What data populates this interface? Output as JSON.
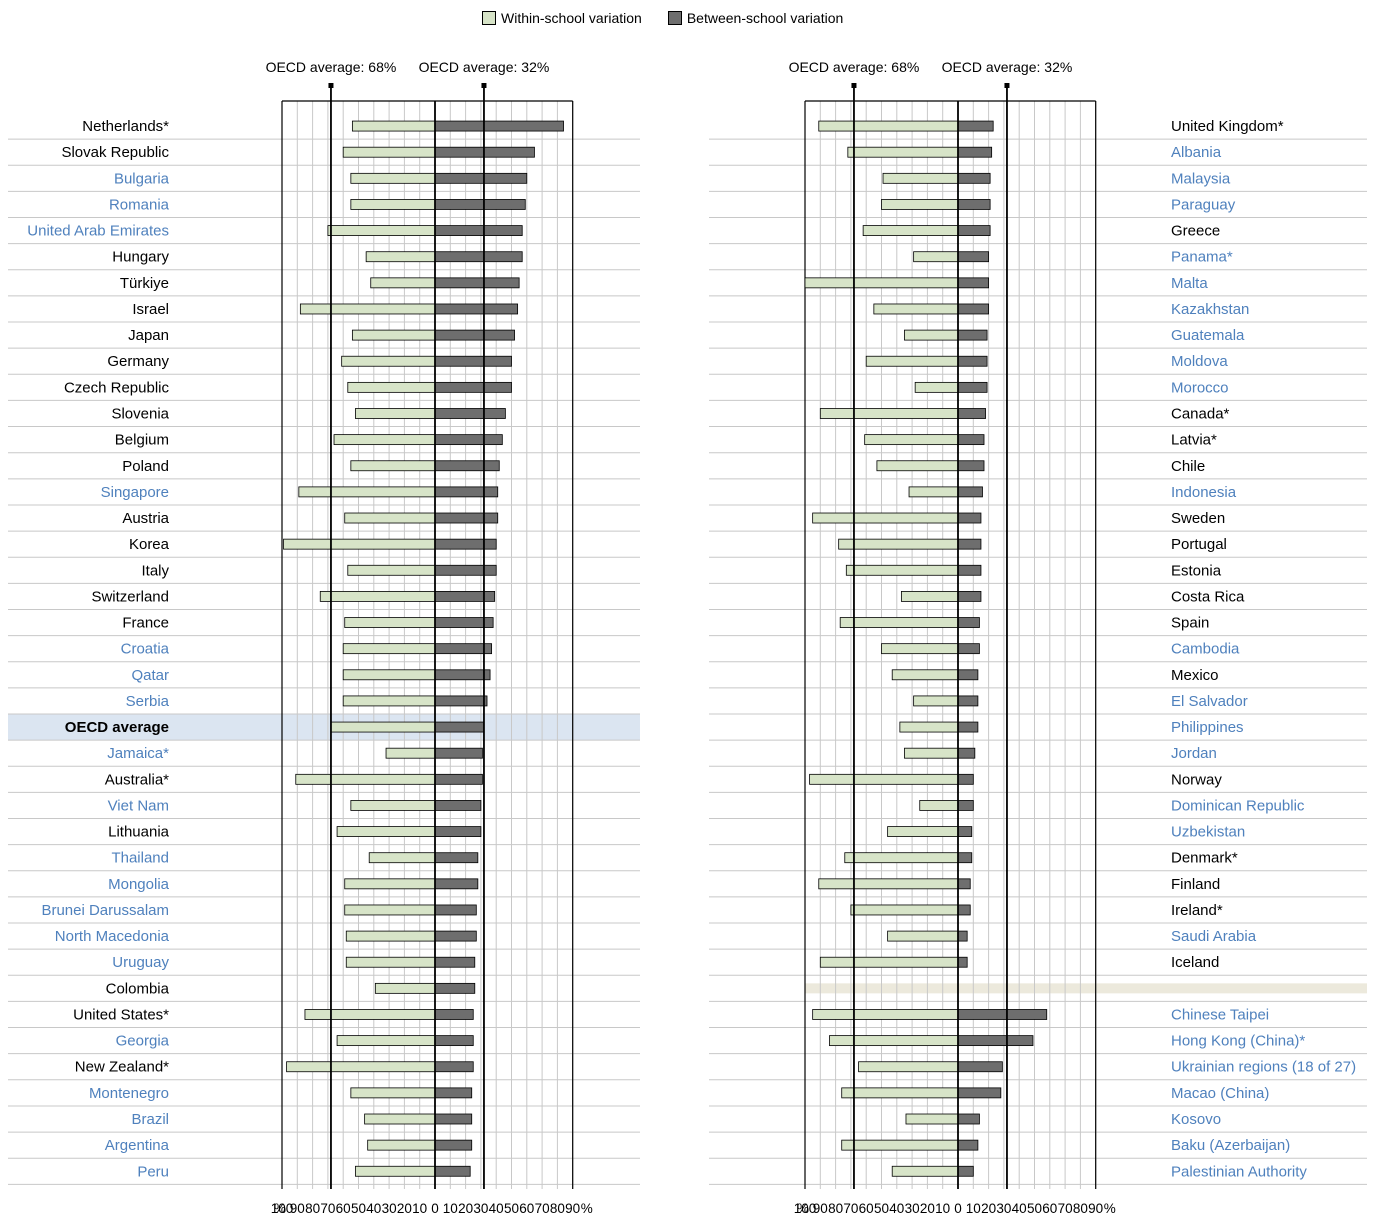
{
  "colors": {
    "within": "#d7e4c8",
    "between": "#6e6e6e",
    "partner_label": "#4f81bd",
    "oecd_label": "#000000",
    "oecd_highlight": "#dbe5f1",
    "separator": "#ece9dc"
  },
  "legend": {
    "within_label": "Within-school variation",
    "between_label": "Between-school variation"
  },
  "axis": {
    "tick_labels": [
      "100",
      "90",
      "80",
      "70",
      "60",
      "50",
      "40",
      "30",
      "20",
      "10",
      "0",
      "10",
      "20",
      "30",
      "40",
      "50",
      "60",
      "70",
      "80",
      "90"
    ],
    "percent_sign": "%"
  },
  "chart_data": {
    "type": "bar",
    "subtype": "diverging horizontal bar",
    "unit": "%",
    "oecd_average_within": 68,
    "oecd_average_between": 32,
    "annotations": [
      "OECD average: 68%",
      "OECD average: 32%"
    ],
    "xlim_within": [
      0,
      100
    ],
    "xlim_between": [
      0,
      90
    ],
    "grid": true,
    "legend_position": "top-center",
    "panels": [
      {
        "rows": [
          {
            "label": "Netherlands*",
            "within": 54,
            "between": 84,
            "oecd": true
          },
          {
            "label": "Slovak Republic",
            "within": 60,
            "between": 65,
            "oecd": true
          },
          {
            "label": "Bulgaria",
            "within": 55,
            "between": 60,
            "oecd": false
          },
          {
            "label": "Romania",
            "within": 55,
            "between": 59,
            "oecd": false
          },
          {
            "label": "United Arab Emirates",
            "within": 70,
            "between": 57,
            "oecd": false
          },
          {
            "label": "Hungary",
            "within": 45,
            "between": 57,
            "oecd": true
          },
          {
            "label": "Türkiye",
            "within": 42,
            "between": 55,
            "oecd": true
          },
          {
            "label": "Israel",
            "within": 88,
            "between": 54,
            "oecd": true
          },
          {
            "label": "Japan",
            "within": 54,
            "between": 52,
            "oecd": true
          },
          {
            "label": "Germany",
            "within": 61,
            "between": 50,
            "oecd": true
          },
          {
            "label": "Czech Republic",
            "within": 57,
            "between": 50,
            "oecd": true
          },
          {
            "label": "Slovenia",
            "within": 52,
            "between": 46,
            "oecd": true
          },
          {
            "label": "Belgium",
            "within": 66,
            "between": 44,
            "oecd": true
          },
          {
            "label": "Poland",
            "within": 55,
            "between": 42,
            "oecd": true
          },
          {
            "label": "Singapore",
            "within": 89,
            "between": 41,
            "oecd": false
          },
          {
            "label": "Austria",
            "within": 59,
            "between": 41,
            "oecd": true
          },
          {
            "label": "Korea",
            "within": 99,
            "between": 40,
            "oecd": true
          },
          {
            "label": "Italy",
            "within": 57,
            "between": 40,
            "oecd": true
          },
          {
            "label": "Switzerland",
            "within": 75,
            "between": 39,
            "oecd": true
          },
          {
            "label": "France",
            "within": 59,
            "between": 38,
            "oecd": true
          },
          {
            "label": "Croatia",
            "within": 60,
            "between": 37,
            "oecd": false
          },
          {
            "label": "Qatar",
            "within": 60,
            "between": 36,
            "oecd": false
          },
          {
            "label": "Serbia",
            "within": 60,
            "between": 34,
            "oecd": false
          },
          {
            "label": "OECD average",
            "within": 68,
            "between": 32,
            "oecd": true,
            "highlight": true
          },
          {
            "label": "Jamaica*",
            "within": 32,
            "between": 31,
            "oecd": false
          },
          {
            "label": "Australia*",
            "within": 91,
            "between": 31,
            "oecd": true
          },
          {
            "label": "Viet Nam",
            "within": 55,
            "between": 30,
            "oecd": false
          },
          {
            "label": "Lithuania",
            "within": 64,
            "between": 30,
            "oecd": true
          },
          {
            "label": "Thailand",
            "within": 43,
            "between": 28,
            "oecd": false
          },
          {
            "label": "Mongolia",
            "within": 59,
            "between": 28,
            "oecd": false
          },
          {
            "label": "Brunei Darussalam",
            "within": 59,
            "between": 27,
            "oecd": false
          },
          {
            "label": "North Macedonia",
            "within": 58,
            "between": 27,
            "oecd": false
          },
          {
            "label": "Uruguay",
            "within": 58,
            "between": 26,
            "oecd": false
          },
          {
            "label": "Colombia",
            "within": 39,
            "between": 26,
            "oecd": true
          },
          {
            "label": "United States*",
            "within": 85,
            "between": 25,
            "oecd": true
          },
          {
            "label": "Georgia",
            "within": 64,
            "between": 25,
            "oecd": false
          },
          {
            "label": "New Zealand*",
            "within": 97,
            "between": 25,
            "oecd": true
          },
          {
            "label": "Montenegro",
            "within": 55,
            "between": 24,
            "oecd": false
          },
          {
            "label": "Brazil",
            "within": 46,
            "between": 24,
            "oecd": false
          },
          {
            "label": "Argentina",
            "within": 44,
            "between": 24,
            "oecd": false
          },
          {
            "label": "Peru",
            "within": 52,
            "between": 23,
            "oecd": false
          }
        ]
      },
      {
        "rows": [
          {
            "label": "United Kingdom*",
            "within": 91,
            "between": 23,
            "oecd": true
          },
          {
            "label": "Albania",
            "within": 72,
            "between": 22,
            "oecd": false
          },
          {
            "label": "Malaysia",
            "within": 49,
            "between": 21,
            "oecd": false
          },
          {
            "label": "Paraguay",
            "within": 50,
            "between": 21,
            "oecd": false
          },
          {
            "label": "Greece",
            "within": 62,
            "between": 21,
            "oecd": true
          },
          {
            "label": "Panama*",
            "within": 29,
            "between": 20,
            "oecd": false
          },
          {
            "label": "Malta",
            "within": 100,
            "between": 20,
            "oecd": false
          },
          {
            "label": "Kazakhstan",
            "within": 55,
            "between": 20,
            "oecd": false
          },
          {
            "label": "Guatemala",
            "within": 35,
            "between": 19,
            "oecd": false
          },
          {
            "label": "Moldova",
            "within": 60,
            "between": 19,
            "oecd": false
          },
          {
            "label": "Morocco",
            "within": 28,
            "between": 19,
            "oecd": false
          },
          {
            "label": "Canada*",
            "within": 90,
            "between": 18,
            "oecd": true
          },
          {
            "label": "Latvia*",
            "within": 61,
            "between": 17,
            "oecd": true
          },
          {
            "label": "Chile",
            "within": 53,
            "between": 17,
            "oecd": true
          },
          {
            "label": "Indonesia",
            "within": 32,
            "between": 16,
            "oecd": false
          },
          {
            "label": "Sweden",
            "within": 95,
            "between": 15,
            "oecd": true
          },
          {
            "label": "Portugal",
            "within": 78,
            "between": 15,
            "oecd": true
          },
          {
            "label": "Estonia",
            "within": 73,
            "between": 15,
            "oecd": true
          },
          {
            "label": "Costa Rica",
            "within": 37,
            "between": 15,
            "oecd": true
          },
          {
            "label": "Spain",
            "within": 77,
            "between": 14,
            "oecd": true
          },
          {
            "label": "Cambodia",
            "within": 50,
            "between": 14,
            "oecd": false
          },
          {
            "label": "Mexico",
            "within": 43,
            "between": 13,
            "oecd": true
          },
          {
            "label": "El Salvador",
            "within": 29,
            "between": 13,
            "oecd": false
          },
          {
            "label": "Philippines",
            "within": 38,
            "between": 13,
            "oecd": false
          },
          {
            "label": "Jordan",
            "within": 35,
            "between": 11,
            "oecd": false
          },
          {
            "label": "Norway",
            "within": 97,
            "between": 10,
            "oecd": true
          },
          {
            "label": "Dominican Republic",
            "within": 25,
            "between": 10,
            "oecd": false
          },
          {
            "label": "Uzbekistan",
            "within": 46,
            "between": 9,
            "oecd": false
          },
          {
            "label": "Denmark*",
            "within": 74,
            "between": 9,
            "oecd": true
          },
          {
            "label": "Finland",
            "within": 91,
            "between": 8,
            "oecd": true
          },
          {
            "label": "Ireland*",
            "within": 70,
            "between": 8,
            "oecd": true
          },
          {
            "label": "Saudi Arabia",
            "within": 46,
            "between": 6,
            "oecd": false
          },
          {
            "label": "Iceland",
            "within": 90,
            "between": 6,
            "oecd": true
          },
          {
            "separator": true
          },
          {
            "label": "Chinese Taipei",
            "within": 95,
            "between": 58,
            "oecd": false
          },
          {
            "label": "Hong Kong (China)*",
            "within": 84,
            "between": 49,
            "oecd": false
          },
          {
            "label": "Ukrainian regions (18 of 27)",
            "within": 65,
            "between": 29,
            "oecd": false
          },
          {
            "label": "Macao (China)",
            "within": 76,
            "between": 28,
            "oecd": false
          },
          {
            "label": "Kosovo",
            "within": 34,
            "between": 14,
            "oecd": false
          },
          {
            "label": "Baku (Azerbaijan)",
            "within": 76,
            "between": 13,
            "oecd": false
          },
          {
            "label": "Palestinian Authority",
            "within": 43,
            "between": 10,
            "oecd": false
          }
        ]
      }
    ]
  }
}
